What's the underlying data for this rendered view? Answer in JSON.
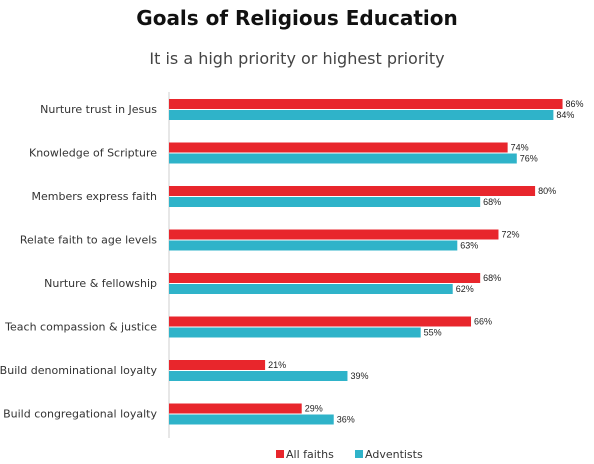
{
  "chart_data": {
    "type": "bar",
    "orientation": "horizontal",
    "title": "Goals of Religious Education",
    "subtitle": "It is a high priority or highest priority",
    "xlabel": "",
    "ylabel": "",
    "xlim": [
      0,
      92
    ],
    "grid": false,
    "legend_position": "bottom",
    "categories": [
      "Nurture trust in Jesus",
      "Knowledge of Scripture",
      "Members express faith",
      "Relate faith to age levels",
      "Nurture & fellowship",
      "Teach compassion & justice",
      "Build denominational loyalty",
      "Build congregational loyalty"
    ],
    "series": [
      {
        "name": "All faiths",
        "color": "#e8262c",
        "values": [
          86,
          74,
          80,
          72,
          68,
          66,
          21,
          29
        ],
        "labels": [
          "86%",
          "74%",
          "80%",
          "72%",
          "68%",
          "66%",
          "21%",
          "29%"
        ]
      },
      {
        "name": "Adventists",
        "color": "#2fb3c9",
        "values": [
          84,
          76,
          68,
          63,
          62,
          55,
          39,
          36
        ],
        "labels": [
          "84%",
          "76%",
          "68%",
          "63%",
          "62%",
          "55%",
          "39%",
          "36%"
        ]
      }
    ]
  }
}
